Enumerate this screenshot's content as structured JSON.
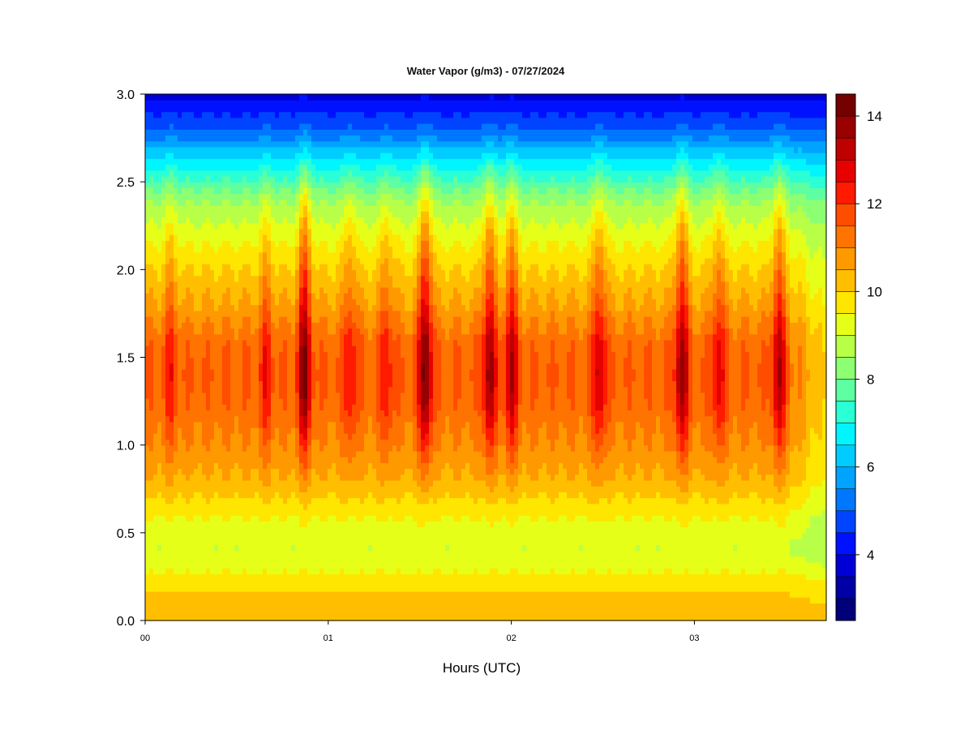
{
  "chart_data": {
    "type": "heatmap",
    "title": "Water Vapor (g/m3) - 07/27/2024",
    "xlabel": "Hours (UTC)",
    "ylabel": "",
    "x_tick_labels": [
      "00",
      "01",
      "02",
      "03"
    ],
    "x_ticks": [
      0,
      1,
      2,
      3
    ],
    "xlim": [
      0,
      3.72
    ],
    "y_tick_labels": [
      "0.0",
      "0.5",
      "1.0",
      "1.5",
      "2.0",
      "2.5",
      "3.0"
    ],
    "y_ticks": [
      0,
      0.5,
      1.0,
      1.5,
      2.0,
      2.5,
      3.0
    ],
    "ylim": [
      0,
      3.0
    ],
    "colorbar": {
      "range": [
        2.5,
        14.5
      ],
      "step": 0.5,
      "tick_labels": [
        "4",
        "6",
        "8",
        "10",
        "12",
        "14"
      ],
      "ticks": [
        4,
        6,
        8,
        10,
        12,
        14
      ],
      "colors": [
        "#00007a",
        "#0000a6",
        "#0000d6",
        "#0011ff",
        "#0044ff",
        "#0077ff",
        "#00a3ff",
        "#00ccff",
        "#00f5ff",
        "#2affd5",
        "#5dffa2",
        "#8cff73",
        "#b8ff47",
        "#e6ff19",
        "#ffe600",
        "#ffbf00",
        "#ff9900",
        "#ff7300",
        "#ff4d00",
        "#ff1a00",
        "#e60000",
        "#bf0000",
        "#990000",
        "#750000"
      ]
    },
    "profile_height_km": [
      0.0,
      0.2,
      0.4,
      0.6,
      0.8,
      1.0,
      1.2,
      1.4,
      1.6,
      1.8,
      2.0,
      2.2,
      2.4,
      2.6,
      2.8,
      3.0
    ],
    "base_profile_gm3": [
      10.4,
      10.0,
      9.3,
      9.6,
      10.4,
      10.9,
      11.3,
      11.5,
      11.3,
      10.6,
      10.0,
      9.3,
      8.4,
      6.8,
      5.0,
      3.8
    ],
    "wet_peaks": [
      {
        "hour": 0.14,
        "strength": 0.8
      },
      {
        "hour": 0.66,
        "strength": 0.9
      },
      {
        "hour": 0.87,
        "strength": 2.4
      },
      {
        "hour": 1.12,
        "strength": 1.1
      },
      {
        "hour": 1.32,
        "strength": 1.0
      },
      {
        "hour": 1.53,
        "strength": 2.6
      },
      {
        "hour": 1.88,
        "strength": 2.1
      },
      {
        "hour": 2.0,
        "strength": 1.8
      },
      {
        "hour": 2.48,
        "strength": 1.6
      },
      {
        "hour": 2.93,
        "strength": 2.2
      },
      {
        "hour": 3.13,
        "strength": 1.3
      },
      {
        "hour": 3.46,
        "strength": 1.8
      }
    ]
  }
}
